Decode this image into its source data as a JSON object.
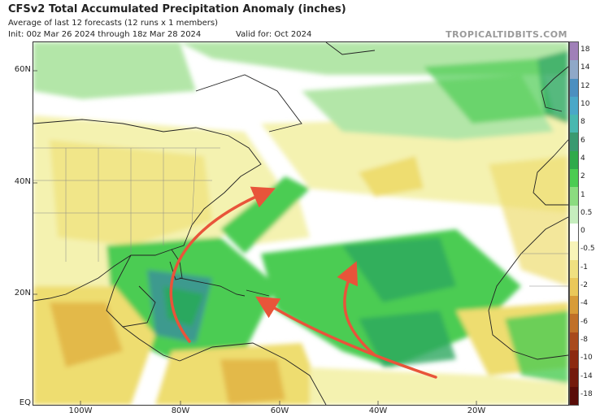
{
  "header": {
    "title": "CFSv2 Total Accumulated Precipitation Anomaly (inches)",
    "subtitle": "Average of last 12 forecasts (12 runs x 1 members)",
    "init": "Init: 00z Mar 26 2024 through 18z Mar 28 2024",
    "valid": "Valid for: Oct 2024",
    "brand": "TROPICALTIDBITS.COM"
  },
  "map": {
    "lat_labels": [
      "60N",
      "40N",
      "20N",
      "EQ"
    ],
    "lon_labels": [
      "100W",
      "80W",
      "60W",
      "40W",
      "20W"
    ],
    "colors": {
      "dry_light": "#f4f2b0",
      "dry_yellow": "#eedd70",
      "dry_orange": "#e3b94a",
      "wet_light": "#b3e6a8",
      "wet_green": "#4bcc52",
      "wet_dark": "#2aa85e",
      "wet_teal": "#3d9a8e",
      "arrow": "#e8543a",
      "coast": "#222222",
      "border": "#888888"
    }
  },
  "colorbar": {
    "labels": [
      "18",
      "14",
      "12",
      "10",
      "8",
      "6",
      "4",
      "2",
      "1",
      "0.5",
      "0",
      "-0.5",
      "-1",
      "-2",
      "-4",
      "-6",
      "-8",
      "-10",
      "-14",
      "-18"
    ],
    "colors": [
      "#a080b8",
      "#8fa8c8",
      "#4b8fc0",
      "#4aa8c8",
      "#48b8b0",
      "#3a9a70",
      "#2faa4a",
      "#4bcc52",
      "#8bdc80",
      "#c6eebe",
      "#ffffff",
      "#f8f4b8",
      "#f0e080",
      "#eac85a",
      "#d89c38",
      "#c07028",
      "#a84a1c",
      "#8c2a10",
      "#741a0c",
      "#5a0c08"
    ]
  }
}
